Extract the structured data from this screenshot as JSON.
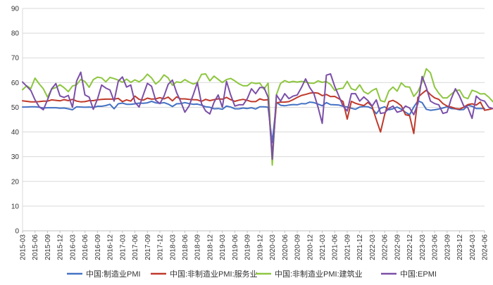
{
  "chart_data": {
    "type": "line",
    "title": "",
    "xlabel": "",
    "ylabel": "",
    "ylim": [
      0,
      90
    ],
    "yticks": [
      0,
      10,
      20,
      30,
      40,
      50,
      60,
      70,
      80,
      90
    ],
    "grid": "horizontal",
    "legend": "bottom",
    "x_start": "2015-03",
    "x_end": "2024-06",
    "x_tick_labels": [
      "2015-03",
      "2015-06",
      "2015-09",
      "2015-12",
      "2016-03",
      "2016-06",
      "2016-09",
      "2016-12",
      "2017-03",
      "2017-06",
      "2017-09",
      "2017-12",
      "2018-03",
      "2018-06",
      "2018-09",
      "2018-12",
      "2019-03",
      "2019-06",
      "2019-09",
      "2019-12",
      "2020-03",
      "2020-06",
      "2020-09",
      "2020-12",
      "2021-03",
      "2021-06",
      "2021-09",
      "2021-12",
      "2022-03",
      "2022-06",
      "2022-09",
      "2022-12",
      "2023-03",
      "2023-06",
      "2023-09",
      "2023-12",
      "2024-03",
      "2024-06"
    ],
    "series": [
      {
        "name": "中国:制造业PMI",
        "color": "#4472C4",
        "values": [
          50.1,
          50.1,
          50.2,
          50.2,
          50.0,
          49.7,
          49.8,
          49.8,
          49.8,
          49.6,
          49.7,
          49.4,
          49.0,
          50.2,
          50.1,
          50.0,
          50.1,
          49.9,
          50.4,
          50.4,
          50.7,
          51.2,
          49.4,
          51.4,
          51.7,
          51.2,
          51.2,
          51.4,
          51.7,
          51.6,
          51.8,
          52.4,
          51.8,
          51.6,
          51.9,
          51.3,
          50.3,
          51.4,
          51.5,
          51.9,
          51.5,
          51.2,
          51.3,
          50.8,
          50.2,
          50.0,
          49.4,
          49.5,
          49.2,
          50.5,
          50.1,
          49.4,
          49.4,
          49.7,
          49.5,
          49.8,
          49.3,
          50.2,
          50.2,
          50.0,
          35.7,
          52.0,
          50.8,
          50.6,
          50.9,
          51.1,
          51.0,
          51.5,
          51.4,
          52.1,
          51.9,
          51.3,
          50.6,
          51.9,
          51.1,
          51.0,
          50.9,
          50.4,
          50.1,
          49.6,
          49.2,
          50.1,
          50.3,
          50.2,
          49.5,
          47.4,
          49.6,
          50.2,
          49.0,
          49.4,
          50.1,
          49.2,
          48.0,
          47.0,
          50.1,
          52.6,
          51.9,
          49.2,
          48.8,
          49.0,
          49.3,
          49.7,
          50.2,
          49.5,
          49.4,
          49.0,
          49.1,
          50.8,
          50.4,
          49.5,
          49.5,
          49.5
        ]
      },
      {
        "name": "中国:非制造业PMI:服务业",
        "color": "#C0392B",
        "values": [
          52.6,
          52.4,
          52.2,
          52.2,
          52.3,
          52.5,
          52.5,
          53.0,
          52.8,
          52.6,
          53.1,
          52.7,
          53.2,
          52.5,
          52.2,
          52.3,
          52.7,
          52.7,
          53.0,
          53.2,
          53.3,
          53.3,
          53.3,
          53.6,
          52.3,
          53.0,
          52.5,
          54.5,
          53.2,
          52.9,
          53.7,
          53.3,
          53.4,
          53.9,
          53.4,
          54.1,
          52.6,
          54.2,
          53.4,
          53.4,
          53.2,
          53.1,
          53.0,
          52.4,
          53.2,
          52.7,
          53.1,
          53.4,
          53.3,
          54.0,
          53.1,
          52.4,
          52.9,
          53.2,
          52.8,
          52.3,
          52.3,
          53.4,
          52.9,
          53.1,
          30.1,
          51.8,
          52.1,
          52.1,
          52.3,
          53.1,
          54.0,
          54.8,
          55.2,
          55.7,
          55.9,
          55.7,
          54.7,
          55.2,
          54.3,
          54.4,
          53.5,
          52.3,
          45.2,
          52.4,
          51.6,
          51.1,
          50.7,
          52.0,
          50.3,
          45.0,
          40.0,
          47.1,
          52.3,
          52.8,
          51.9,
          50.6,
          47.0,
          46.6,
          39.4,
          54.0,
          55.6,
          56.9,
          55.1,
          53.8,
          53.2,
          51.5,
          50.5,
          50.1,
          49.5,
          49.3,
          50.0,
          51.1,
          51.4,
          50.9,
          52.1,
          48.8,
          49.1,
          49.5
        ]
      },
      {
        "name": "中国:非制造业PMI:建筑业",
        "color": "#8DC63F",
        "values": [
          57.1,
          58.7,
          57.6,
          61.8,
          59.5,
          57.5,
          54.1,
          57.4,
          58.0,
          59.1,
          57.9,
          56.3,
          58.6,
          59.1,
          61.3,
          60.4,
          58.1,
          61.2,
          62.2,
          61.9,
          60.3,
          62.1,
          61.6,
          61.0,
          60.1,
          61.4,
          60.1,
          61.1,
          60.3,
          61.4,
          63.4,
          61.9,
          59.4,
          60.8,
          63.1,
          61.9,
          58.9,
          60.3,
          60.0,
          61.2,
          60.2,
          59.4,
          60.0,
          63.3,
          63.5,
          60.7,
          62.6,
          61.3,
          60.0,
          61.2,
          61.7,
          60.7,
          59.5,
          58.7,
          58.7,
          60.0,
          59.6,
          59.8,
          57.3,
          59.8,
          26.6,
          55.1,
          59.7,
          60.8,
          60.1,
          60.5,
          60.2,
          60.5,
          60.2,
          59.8,
          59.7,
          60.7,
          60.1,
          60.4,
          59.2,
          56.8,
          57.5,
          57.7,
          60.5,
          57.5,
          56.9,
          59.1,
          56.3,
          55.4,
          56.8,
          57.6,
          52.7,
          52.2,
          56.6,
          58.2,
          56.5,
          59.9,
          58.3,
          58.2,
          54.4,
          56.4,
          60.2,
          65.6,
          63.9,
          58.2,
          55.7,
          53.8,
          53.8,
          55.3,
          56.7,
          57.0,
          54.1,
          53.5,
          56.9,
          56.3,
          55.4,
          55.5,
          54.1,
          52.3
        ]
      },
      {
        "name": "中国:EPMI",
        "color": "#7B4FA8",
        "values": [
          60.2,
          58.5,
          56.8,
          53.0,
          50.2,
          49.0,
          53.0,
          57.5,
          59.6,
          54.6,
          54.0,
          54.8,
          50.0,
          60.6,
          64.2,
          55.0,
          54.1,
          49.2,
          53.3,
          59.0,
          57.8,
          57.0,
          52.5,
          60.5,
          62.3,
          58.2,
          59.0,
          52.0,
          50.1,
          55.0,
          59.7,
          58.5,
          52.8,
          51.5,
          54.5,
          59.3,
          61.0,
          56.0,
          52.3,
          48.0,
          50.5,
          55.0,
          60.0,
          51.5,
          48.5,
          47.3,
          52.0,
          55.0,
          50.0,
          60.5,
          55.0,
          50.5,
          51.0,
          51.0,
          53.5,
          57.5,
          55.5,
          58.0,
          58.0,
          54.0,
          29.0,
          55.0,
          52.5,
          55.5,
          53.5,
          54.5,
          55.0,
          58.0,
          61.5,
          58.0,
          55.5,
          50.0,
          43.5,
          63.0,
          63.5,
          58.5,
          54.5,
          50.5,
          48.5,
          55.5,
          55.5,
          52.5,
          54.2,
          52.7,
          50.5,
          53.0,
          47.5,
          47.8,
          49.5,
          50.5,
          48.0,
          48.5,
          50.5,
          49.7,
          47.0,
          51.5,
          62.5,
          58.0,
          52.5,
          51.5,
          51.0,
          47.5,
          48.0,
          53.5,
          57.5,
          54.5,
          50.5,
          49.8,
          45.5,
          54.5,
          53.0,
          52.5,
          50.0,
          49.5
        ]
      }
    ]
  }
}
